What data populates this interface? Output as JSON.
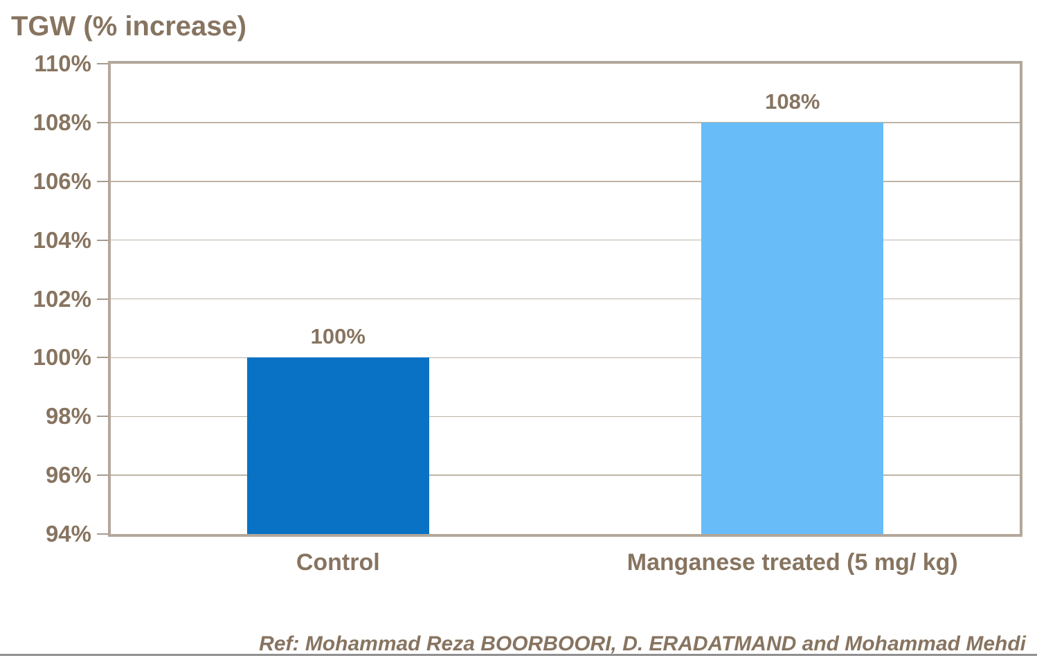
{
  "chart_data": {
    "type": "bar",
    "title": "TGW (% increase)",
    "categories": [
      "Control",
      "Manganese treated (5 mg/ kg)"
    ],
    "values": [
      100,
      108
    ],
    "value_labels": [
      "100%",
      "108%"
    ],
    "y_tick_labels": [
      "110%",
      "108%",
      "106%",
      "104%",
      "102%",
      "100%",
      "98%",
      "96%",
      "94%"
    ],
    "ylim": [
      94,
      110
    ],
    "y_step": 2,
    "xlabel": "",
    "ylabel": "",
    "grid": true,
    "legend": "none",
    "series": [
      {
        "name": "Control",
        "value": 100,
        "color": "#0a72c4"
      },
      {
        "name": "Manganese treated (5 mg/ kg)",
        "value": 108,
        "color": "#68bcf8"
      }
    ],
    "footer": "Ref: Mohammad Reza BOORBOORI, D. ERADATMAND and Mohammad Mehdi"
  },
  "colors": {
    "background": "#ffffff",
    "text_brown": "#877460",
    "grid": "#bdb3a6",
    "axis_border": "#b2a79a",
    "tick": "#a79c8c",
    "bar_control": "#0a72c4",
    "bar_treated": "#68bcf8",
    "bottom_rule": "#8f8f8f"
  }
}
